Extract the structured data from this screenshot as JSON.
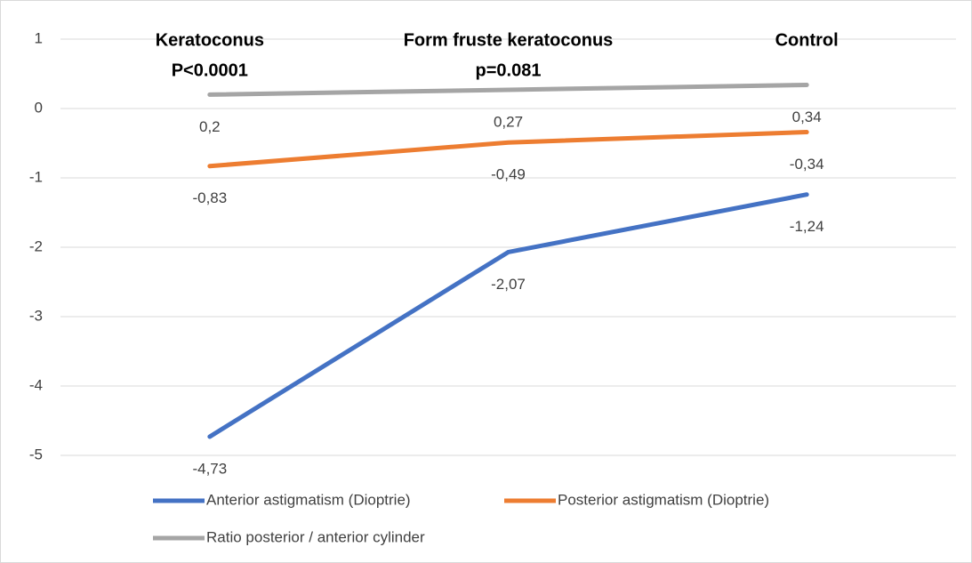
{
  "chart_data": {
    "type": "line",
    "categories": [
      "Keratoconus",
      "Form fruste keratoconus",
      "Control"
    ],
    "annotations": [
      "P<0.0001",
      "p=0.081"
    ],
    "series": [
      {
        "name": "Anterior astigmatism (Dioptrie)",
        "color": "#4472c4",
        "values": [
          -4.73,
          -2.07,
          -1.24
        ],
        "value_labels": [
          "-4,73",
          "-2,07",
          "-1,24"
        ]
      },
      {
        "name": "Posterior astigmatism (Dioptrie)",
        "color": "#ed7d31",
        "values": [
          -0.83,
          -0.49,
          -0.34
        ],
        "value_labels": [
          "-0,83",
          "-0,49",
          "-0,34"
        ]
      },
      {
        "name": "Ratio posterior / anterior cylinder",
        "color": "#a5a5a5",
        "values": [
          0.2,
          0.27,
          0.34
        ],
        "value_labels": [
          "0,2",
          "0,27",
          "0,34"
        ]
      }
    ],
    "ylim": [
      -5,
      1
    ],
    "yticks": [
      1,
      0,
      -1,
      -2,
      -3,
      -4,
      -5
    ],
    "grid": true,
    "legend": "bottom"
  }
}
